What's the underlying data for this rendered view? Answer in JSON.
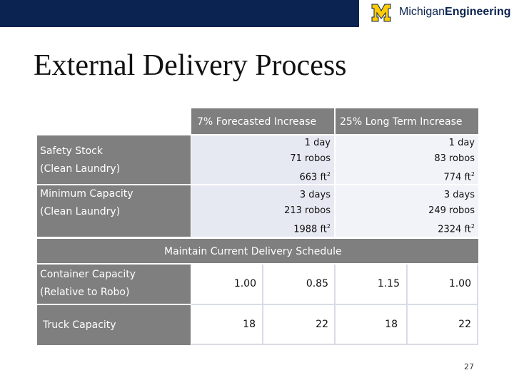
{
  "header": {
    "logo_text_regular": "Michigan",
    "logo_text_bold": "Engineering",
    "logo_mark": "block-M-logo",
    "colors": {
      "navy": "#0b2350",
      "maize": "#ffcb05"
    }
  },
  "title": "External Delivery Process",
  "table": {
    "columns": [
      "7% Forecasted Increase",
      "25% Long Term Increase"
    ],
    "rows": [
      {
        "label_line1": "Safety Stock",
        "label_line2": "(Clean Laundry)",
        "forecast": [
          "1 day",
          "71 robos",
          "663 ft"
        ],
        "longterm": [
          "1 day",
          "83 robos",
          "774 ft"
        ]
      },
      {
        "label_line1": "Minimum Capacity",
        "label_line2": "(Clean Laundry)",
        "forecast": [
          "3 days",
          "213 robos",
          "1988 ft"
        ],
        "longterm": [
          "3 days",
          "249 robos",
          "2324 ft"
        ]
      }
    ],
    "unit_superscript": "2"
  },
  "schedule_label": "Maintain Current Delivery Schedule",
  "capacity_rows": [
    {
      "label_line1": "Container Capacity",
      "label_line2": "(Relative to Robo)",
      "values": [
        "1.00",
        "0.85",
        "1.15",
        "1.00"
      ]
    },
    {
      "label_line1": "Truck Capacity",
      "label_line2": "",
      "values": [
        "18",
        "22",
        "18",
        "22"
      ]
    }
  ],
  "page_number": "27"
}
